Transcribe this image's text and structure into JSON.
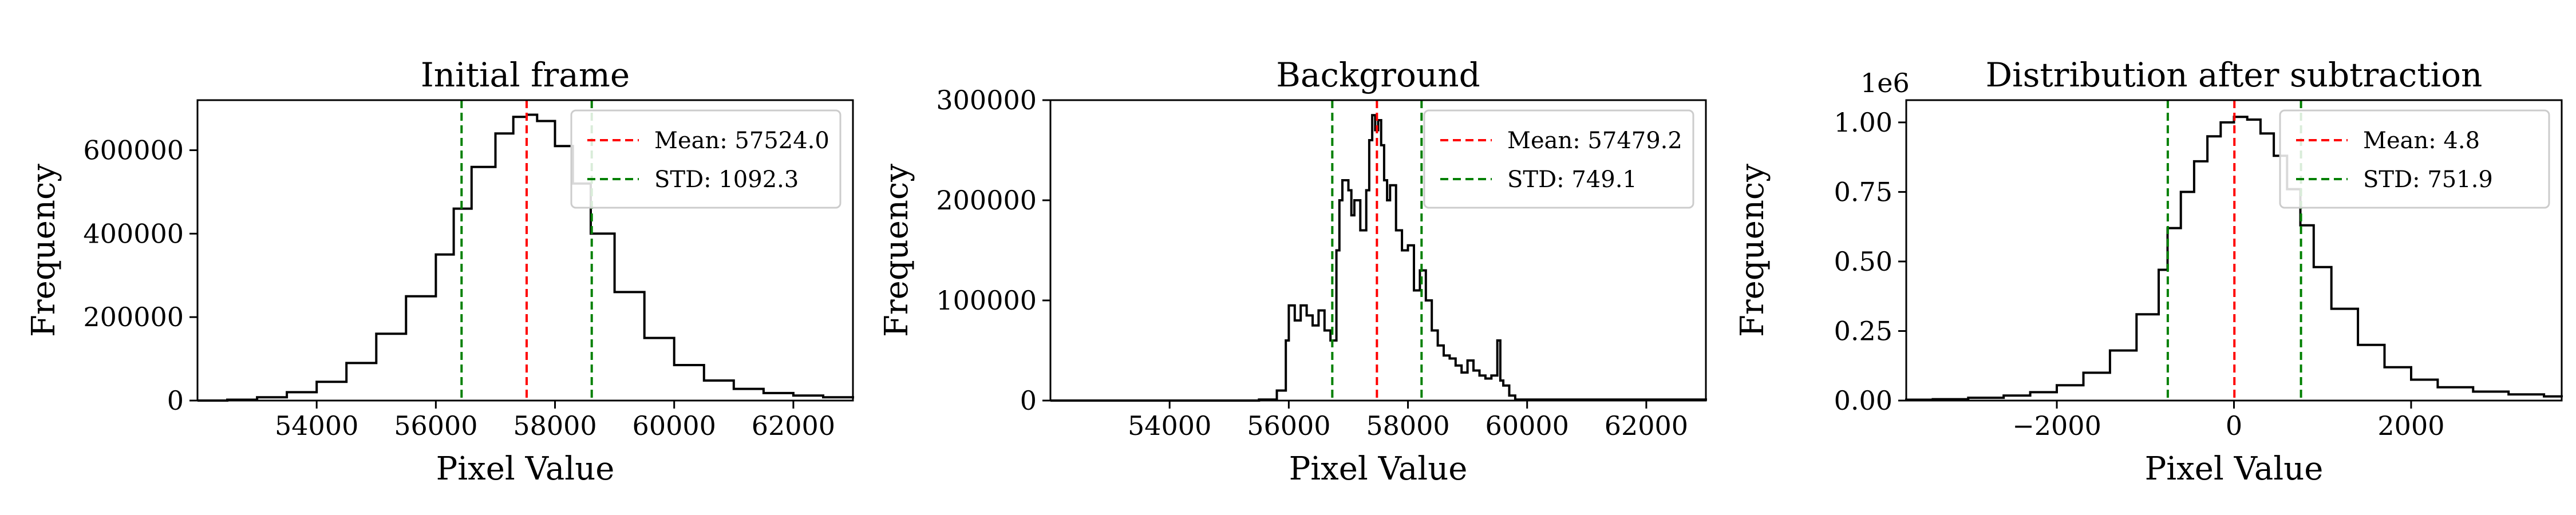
{
  "chart_data": [
    {
      "type": "histogram",
      "title": "Initial frame",
      "xlabel": "Pixel Value",
      "ylabel": "Frequency",
      "xlim": [
        52000,
        63000
      ],
      "ylim": [
        0,
        720000
      ],
      "xticks": [
        54000,
        56000,
        58000,
        60000,
        62000
      ],
      "xtick_labels": [
        "54000",
        "56000",
        "58000",
        "60000",
        "62000"
      ],
      "yticks": [
        0,
        200000,
        400000,
        600000
      ],
      "ytick_labels": [
        "0",
        "200000",
        "400000",
        "600000"
      ],
      "y_offset_label": "",
      "histogram": {
        "x": [
          52000,
          52500,
          53000,
          53500,
          54000,
          54500,
          55000,
          55500,
          56000,
          56300,
          56600,
          57000,
          57300,
          57524,
          57700,
          58000,
          58300,
          58600,
          59000,
          59500,
          60000,
          60500,
          61000,
          61500,
          62000,
          62500,
          63000
        ],
        "y": [
          0,
          2000,
          8000,
          20000,
          45000,
          90000,
          160000,
          250000,
          350000,
          460000,
          560000,
          640000,
          680000,
          685000,
          670000,
          610000,
          520000,
          400000,
          260000,
          150000,
          85000,
          48000,
          28000,
          18000,
          12000,
          8000,
          5000
        ]
      },
      "vlines": [
        {
          "name": "Mean: 57524.0",
          "x": 57524.0,
          "color": "#ff0000"
        },
        {
          "name": "STD: 1092.3",
          "x": [
            56431.7,
            58616.3
          ],
          "color": "#008000"
        }
      ],
      "legend_position": "upper-right"
    },
    {
      "type": "histogram",
      "title": "Background",
      "xlabel": "Pixel Value",
      "ylabel": "Frequency",
      "xlim": [
        52000,
        63000
      ],
      "ylim": [
        0,
        300000
      ],
      "xticks": [
        54000,
        56000,
        58000,
        60000,
        62000
      ],
      "xtick_labels": [
        "54000",
        "56000",
        "58000",
        "60000",
        "62000"
      ],
      "yticks": [
        0,
        100000,
        200000,
        300000
      ],
      "ytick_labels": [
        "0",
        "100000",
        "200000",
        "300000"
      ],
      "y_offset_label": "",
      "histogram": {
        "x": [
          52000,
          55500,
          55800,
          55950,
          56000,
          56100,
          56200,
          56300,
          56400,
          56500,
          56600,
          56700,
          56800,
          56850,
          56900,
          57000,
          57050,
          57100,
          57200,
          57300,
          57350,
          57400,
          57450,
          57500,
          57550,
          57600,
          57650,
          57700,
          57800,
          57900,
          58000,
          58100,
          58200,
          58300,
          58400,
          58500,
          58600,
          58700,
          58800,
          58900,
          59000,
          59100,
          59200,
          59300,
          59400,
          59500,
          59550,
          59600,
          59700,
          59800,
          63000
        ],
        "y": [
          0,
          1000,
          10000,
          60000,
          95000,
          80000,
          95000,
          85000,
          75000,
          90000,
          70000,
          60000,
          150000,
          200000,
          220000,
          210000,
          185000,
          200000,
          170000,
          210000,
          260000,
          285000,
          270000,
          280000,
          255000,
          220000,
          200000,
          215000,
          170000,
          150000,
          155000,
          110000,
          130000,
          100000,
          70000,
          55000,
          45000,
          42000,
          35000,
          28000,
          40000,
          30000,
          25000,
          22000,
          25000,
          60000,
          20000,
          15000,
          5000,
          1000,
          0
        ]
      },
      "vlines": [
        {
          "name": "Mean: 57479.2",
          "x": 57479.2,
          "color": "#ff0000"
        },
        {
          "name": "STD: 749.1",
          "x": [
            56730.1,
            58228.3
          ],
          "color": "#008000"
        }
      ],
      "legend_position": "upper-right"
    },
    {
      "type": "histogram",
      "title": "Distribution after subtraction",
      "xlabel": "Pixel Value",
      "ylabel": "Frequency",
      "xlim": [
        -3700,
        3700
      ],
      "ylim": [
        0,
        1080000
      ],
      "xticks": [
        -2000,
        0,
        2000
      ],
      "xtick_labels": [
        "−2000",
        "0",
        "2000"
      ],
      "yticks": [
        0,
        250000,
        500000,
        750000,
        1000000
      ],
      "ytick_labels": [
        "0.00",
        "0.25",
        "0.50",
        "0.75",
        "1.00"
      ],
      "y_offset_label": "1e6",
      "histogram": {
        "x": [
          -3700,
          -3400,
          -3000,
          -2600,
          -2300,
          -2000,
          -1700,
          -1400,
          -1100,
          -850,
          -750,
          -600,
          -450,
          -300,
          -150,
          0,
          150,
          300,
          450,
          600,
          750,
          900,
          1100,
          1400,
          1700,
          2000,
          2300,
          2700,
          3100,
          3500,
          3700
        ],
        "y": [
          3000,
          5000,
          10000,
          18000,
          30000,
          55000,
          100000,
          180000,
          310000,
          470000,
          620000,
          750000,
          860000,
          950000,
          1000000,
          1020000,
          1010000,
          960000,
          880000,
          760000,
          630000,
          480000,
          330000,
          200000,
          120000,
          75000,
          48000,
          32000,
          22000,
          15000,
          12000
        ]
      },
      "vlines": [
        {
          "name": "Mean: 4.8",
          "x": 4.8,
          "color": "#ff0000"
        },
        {
          "name": "STD: 751.9",
          "x": [
            -747.1,
            756.7
          ],
          "color": "#008000"
        }
      ],
      "legend_position": "upper-right"
    }
  ]
}
